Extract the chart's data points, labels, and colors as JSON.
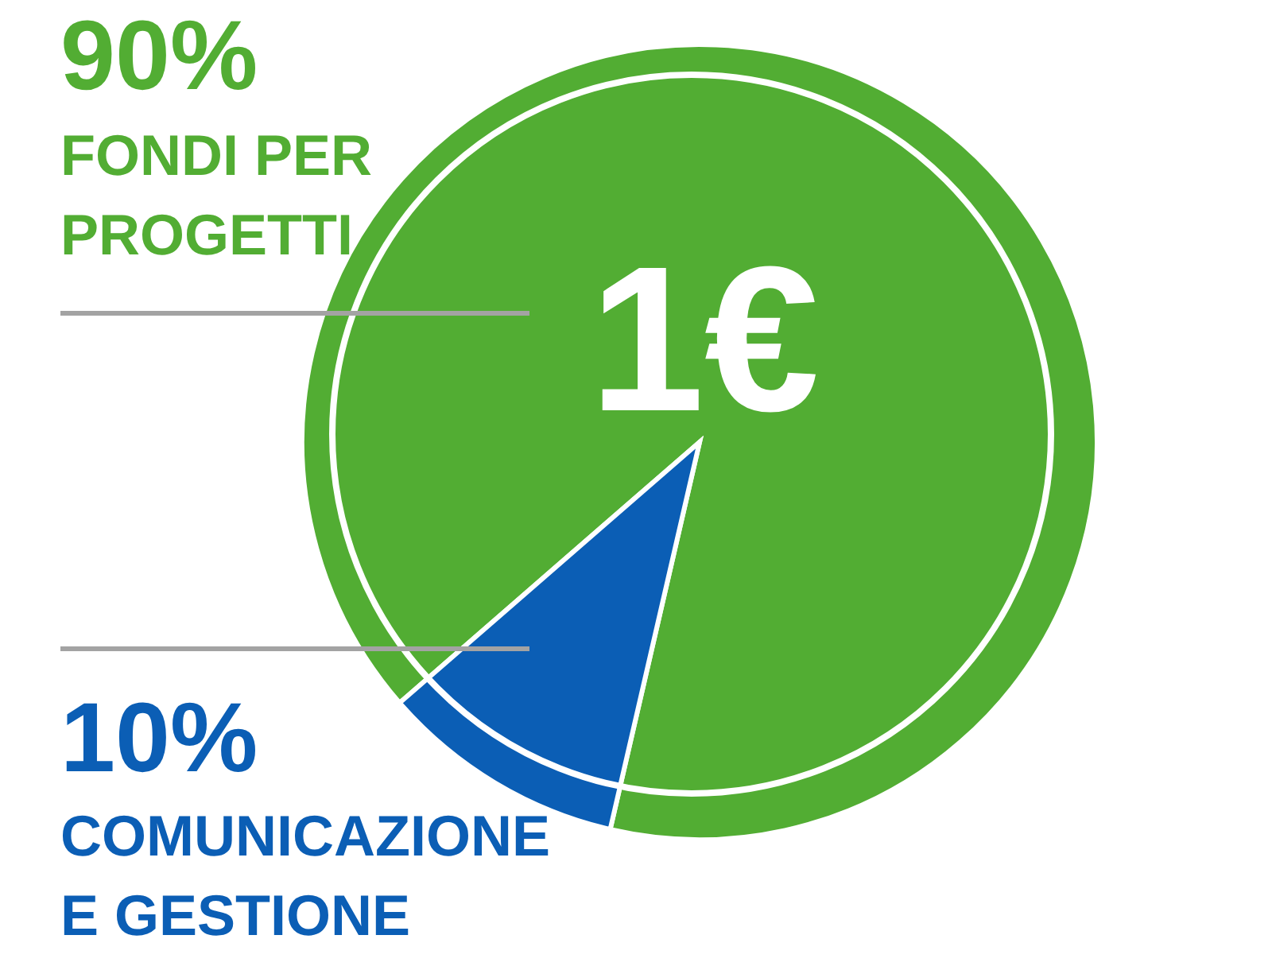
{
  "chart_data": {
    "type": "pie",
    "title": "1€",
    "categories": [
      "FONDI PER PROGETTI",
      "COMUNICAZIONE E GESTIONE"
    ],
    "values": [
      90,
      10
    ],
    "colors": [
      "#52ad33",
      "#0b5eb5"
    ],
    "value_labels": [
      "90%",
      "10%"
    ]
  }
}
